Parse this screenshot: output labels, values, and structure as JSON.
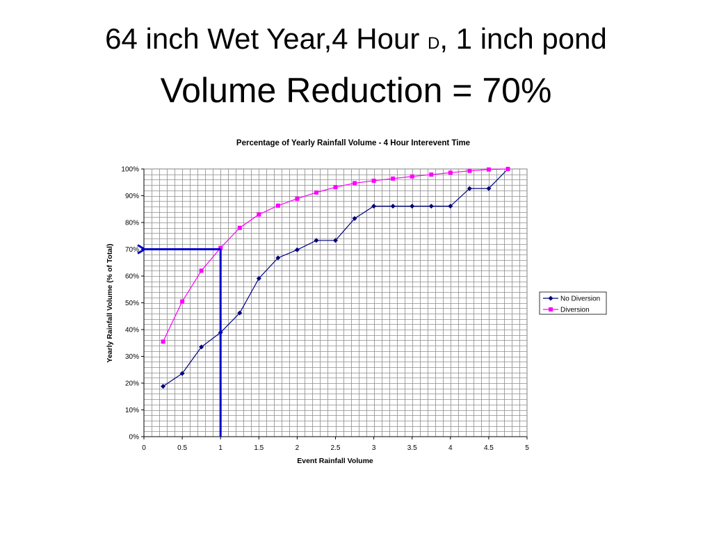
{
  "slide": {
    "title_part1": "64 inch Wet Year,4 Hour ",
    "title_small": "D",
    "title_part2": ", 1 inch pond",
    "subtitle": "Volume Reduction = 70%"
  },
  "chart_data": {
    "type": "line",
    "title": "Percentage of Yearly Rainfall Volume - 4 Hour Interevent Time",
    "xlabel": "Event Rainfall Volume",
    "ylabel": "Yearly Rainfall Volume (% of Total)",
    "xlim": [
      0,
      5
    ],
    "ylim": [
      0,
      100
    ],
    "x_ticks": [
      "0",
      "0.5",
      "1",
      "1.5",
      "2",
      "2.5",
      "3",
      "3.5",
      "4",
      "4.5",
      "5"
    ],
    "y_ticks": [
      "0%",
      "10%",
      "20%",
      "30%",
      "40%",
      "50%",
      "60%",
      "70%",
      "80%",
      "90%",
      "100%"
    ],
    "grid": true,
    "legend_position": "right",
    "series": [
      {
        "name": "No Diversion",
        "color": "#000080",
        "marker": "diamond",
        "x": [
          0.25,
          0.5,
          0.75,
          1.0,
          1.25,
          1.5,
          1.75,
          2.0,
          2.25,
          2.5,
          2.75,
          3.0,
          3.25,
          3.5,
          3.75,
          4.0,
          4.25,
          4.5,
          4.75
        ],
        "y": [
          18.8,
          23.6,
          33.5,
          38.9,
          46.2,
          59.1,
          66.8,
          69.8,
          73.3,
          73.3,
          81.5,
          86.1,
          86.1,
          86.1,
          86.1,
          86.1,
          92.7,
          92.7,
          100
        ]
      },
      {
        "name": "Diversion",
        "color": "#FF00FF",
        "marker": "square",
        "x": [
          0.25,
          0.5,
          0.75,
          1.0,
          1.25,
          1.5,
          1.75,
          2.0,
          2.25,
          2.5,
          2.75,
          3.0,
          3.25,
          3.5,
          3.75,
          4.0,
          4.25,
          4.5,
          4.75
        ],
        "y": [
          35.5,
          50.5,
          62.0,
          70.5,
          78.0,
          83.0,
          86.3,
          88.9,
          91.2,
          93.2,
          94.7,
          95.6,
          96.4,
          97.2,
          97.9,
          98.6,
          99.3,
          99.8,
          100
        ]
      }
    ],
    "annotation": {
      "color": "#0000CC",
      "x": 1.0,
      "y": 70
    }
  }
}
